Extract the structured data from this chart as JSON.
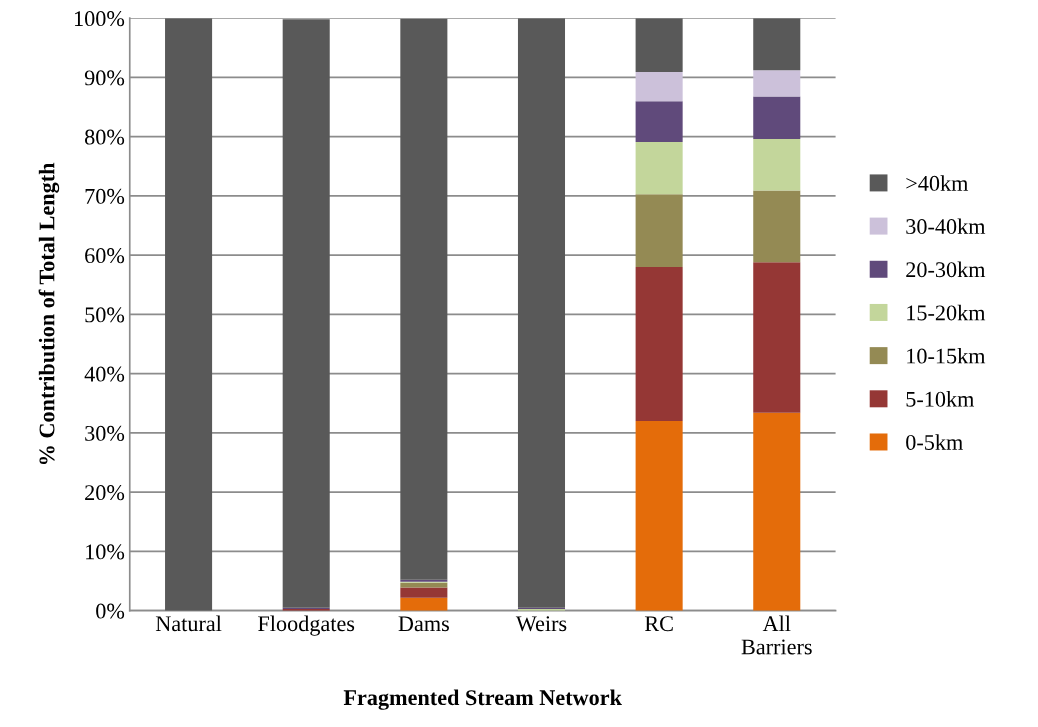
{
  "chart_data": {
    "type": "bar",
    "stacked": true,
    "xlabel": "Fragmented Stream Network",
    "ylabel": "% Contribution of Total Length",
    "categories": [
      "Natural",
      "Floodgates",
      "Dams",
      "Weirs",
      "RC",
      "All\nBarriers"
    ],
    "ylim": [
      0,
      100
    ],
    "yticks": [
      {
        "value": 0,
        "label": "0%"
      },
      {
        "value": 10,
        "label": "10%"
      },
      {
        "value": 20,
        "label": "20%"
      },
      {
        "value": 30,
        "label": "30%"
      },
      {
        "value": 40,
        "label": "40%"
      },
      {
        "value": 50,
        "label": "50%"
      },
      {
        "value": 60,
        "label": "60%"
      },
      {
        "value": 70,
        "label": "70%"
      },
      {
        "value": 80,
        "label": "80%"
      },
      {
        "value": 90,
        "label": "90%"
      },
      {
        "value": 100,
        "label": "100%"
      }
    ],
    "grid": "y",
    "legend": "right",
    "series": [
      {
        "name": "0-5km",
        "color": "#e46c0a",
        "values": [
          0,
          null,
          2.2,
          0,
          32,
          33.4
        ]
      },
      {
        "name": "5-10km",
        "color": "#953735",
        "values": [
          0,
          0.3,
          1.7,
          0,
          26,
          25.4
        ]
      },
      {
        "name": "10-15km",
        "color": "#948a54",
        "values": [
          0,
          null,
          0.8,
          0,
          12.3,
          12.1
        ]
      },
      {
        "name": "15-20km",
        "color": "#c3d69b",
        "values": [
          0,
          0,
          0.2,
          0.3,
          8.8,
          8.7
        ]
      },
      {
        "name": "20-30km",
        "color": "#604a7b",
        "values": [
          0,
          0.2,
          0.3,
          0.2,
          6.9,
          7.2
        ]
      },
      {
        "name": "30-40km",
        "color": "#ccc1da",
        "values": [
          0,
          0,
          null,
          0,
          4.9,
          4.4
        ]
      },
      {
        "name": ">40km",
        "color": "#595959",
        "values": [
          100,
          99.3,
          94.7,
          99.5,
          9.1,
          8.8
        ]
      }
    ]
  }
}
